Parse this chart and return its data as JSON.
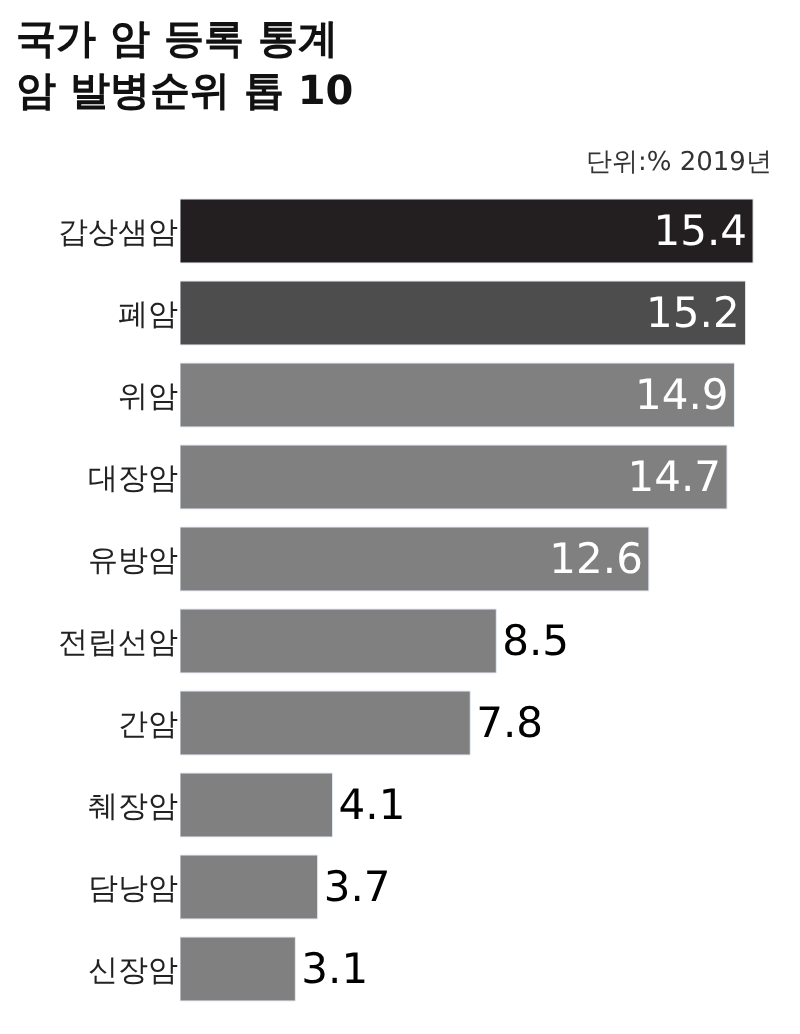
{
  "chart_data": {
    "type": "bar",
    "orientation": "horizontal",
    "title": "국가 암 등록 통계",
    "subtitle": "암 발병순위 톱 10",
    "annotations": [
      "단위:% 2019년"
    ],
    "categories": [
      "갑상샘암",
      "폐암",
      "위암",
      "대장암",
      "유방암",
      "전립선암",
      "간암",
      "췌장암",
      "담낭암",
      "신장암"
    ],
    "values": [
      15.4,
      15.2,
      14.9,
      14.7,
      12.6,
      8.5,
      7.8,
      4.1,
      3.7,
      3.1
    ],
    "colors": [
      "#231f20",
      "#4d4d4d",
      "#808080",
      "#808080",
      "#808080",
      "#808080",
      "#808080",
      "#808080",
      "#808080",
      "#808080"
    ],
    "data_labels": true,
    "legend": false
  }
}
